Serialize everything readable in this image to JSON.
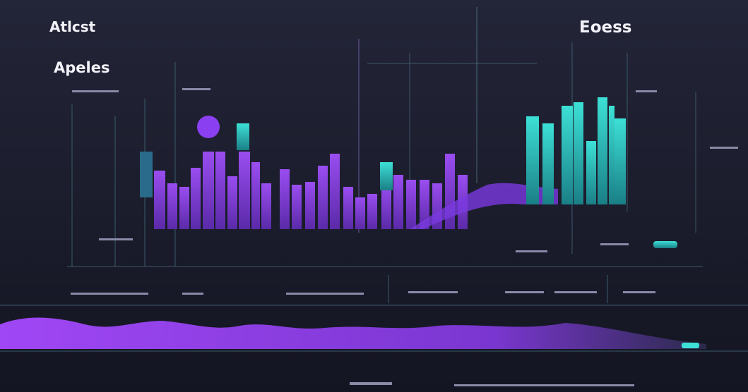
{
  "header": {
    "title": "Atlcst",
    "subtitle": "Apeles",
    "right_title": "Eoess"
  }
}
